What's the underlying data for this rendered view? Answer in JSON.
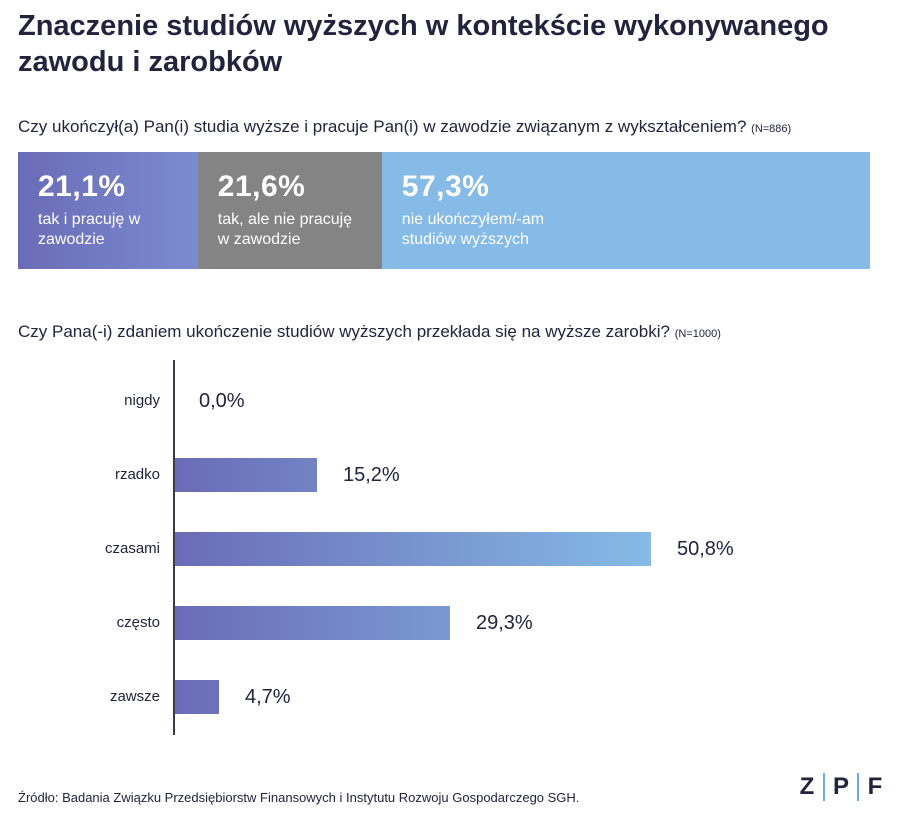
{
  "title": "Znaczenie studiów wyższych w kontekście wykonywanego zawodu i zarobków",
  "q1": {
    "text": "Czy ukończył(a) Pan(i) studia wyższe i pracuje Pan(i) w zawodzie związanym z wykształceniem?",
    "n": "(N=886)"
  },
  "q2": {
    "text": "Czy Pana(-i) zdaniem ukończenie studiów wyższych przekłada się na wyższe zarobki?",
    "n": "(N=1000)"
  },
  "source": "Źródło: Badania Związku Przedsiębiorstw Finansowych i Instytutu Rozwoju Gospodarczego SGH.",
  "logo": [
    "Z",
    "P",
    "F"
  ],
  "colors": {
    "text": "#23233d",
    "bar_start": "#6a6cb6",
    "bar_end": "#85bbe6",
    "gray": "#848484",
    "logo_sep": "#6fa8dc"
  },
  "chart_data": [
    {
      "type": "bar",
      "orientation": "horizontal-stacked",
      "categories": [
        "tak i pracuję w zawodzie",
        "tak, ale nie pracuję w zawodzie",
        "nie ukończyłem/-am studiów wyższych"
      ],
      "values": [
        21.1,
        21.6,
        57.3
      ],
      "value_labels": [
        "21,1%",
        "21,6%",
        "57,3%"
      ],
      "title": "Czy ukończył(a) Pan(i) studia wyższe i pracuje Pan(i) w zawodzie związanym z wykształceniem?",
      "colors": [
        "#6a6cb6",
        "#848484",
        "#85bbe6"
      ]
    },
    {
      "type": "bar",
      "orientation": "horizontal",
      "categories": [
        "nigdy",
        "rzadko",
        "czasami",
        "często",
        "zawsze"
      ],
      "values": [
        0.0,
        15.2,
        50.8,
        29.3,
        4.7
      ],
      "value_labels": [
        "0,0%",
        "15,2%",
        "50,8%",
        "29,3%",
        "4,7%"
      ],
      "title": "Czy Pana(-i) zdaniem ukończenie studiów wyższych przekłada się na wyższe zarobki?",
      "xlim": [
        0,
        50.8
      ],
      "grid": false
    }
  ]
}
